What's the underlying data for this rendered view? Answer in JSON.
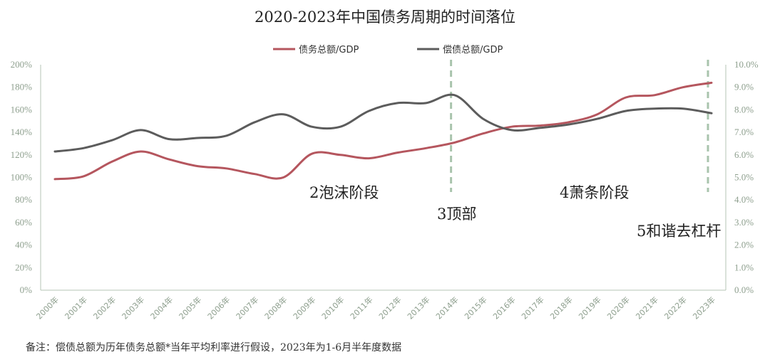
{
  "chart_data": {
    "type": "line",
    "title": "2020-2023年中国债务周期的时间落位",
    "categories": [
      "2000年",
      "2001年",
      "2002年",
      "2003年",
      "2004年",
      "2005年",
      "2006年",
      "2007年",
      "2008年",
      "2009年",
      "2010年",
      "2011年",
      "2012年",
      "2013年",
      "2014年",
      "2015年",
      "2016年",
      "2017年",
      "2018年",
      "2019年",
      "2020年",
      "2021年",
      "2022年",
      "2023年"
    ],
    "series": [
      {
        "name": "债务总额/GDP",
        "axis": "left",
        "color": "#b5565e",
        "values": [
          98.5,
          101,
          114,
          123,
          116,
          110,
          108,
          103,
          100,
          121,
          120,
          117,
          122,
          126,
          131,
          139,
          145,
          146,
          149,
          156,
          171,
          173,
          180,
          184
        ]
      },
      {
        "name": "偿债总额/GDP",
        "axis": "right",
        "color": "#5c5c5c",
        "values": [
          6.15,
          6.3,
          6.65,
          7.1,
          6.7,
          6.75,
          6.85,
          7.45,
          7.8,
          7.25,
          7.25,
          7.95,
          8.3,
          8.3,
          8.65,
          7.6,
          7.1,
          7.2,
          7.35,
          7.6,
          7.95,
          8.05,
          8.05,
          7.85
        ]
      }
    ],
    "y_left": {
      "min": 0,
      "max": 200,
      "step": 20,
      "ticks": [
        "0%",
        "20%",
        "40%",
        "60%",
        "80%",
        "100%",
        "120%",
        "140%",
        "160%",
        "180%",
        "200%"
      ]
    },
    "y_right": {
      "min": 0,
      "max": 10,
      "step": 1,
      "ticks": [
        "0.0%",
        "1.0%",
        "2.0%",
        "3.0%",
        "4.0%",
        "5.0%",
        "6.0%",
        "7.0%",
        "8.0%",
        "9.0%",
        "10.0%"
      ]
    },
    "grid": false,
    "legend": "top-center",
    "markers": [
      {
        "year": "2014年",
        "style": "dashed",
        "color": "#a9c4ad"
      },
      {
        "year": "2023年",
        "style": "dashed",
        "color": "#a9c4ad"
      }
    ],
    "annotations": [
      "2泡沫阶段",
      "3顶部",
      "4萧条阶段",
      "5和谐去杠杆"
    ]
  },
  "footnote": "备注：偿债总额为历年债务总额*当年平均利率进行假设，2023年为1-6月半年度数据"
}
